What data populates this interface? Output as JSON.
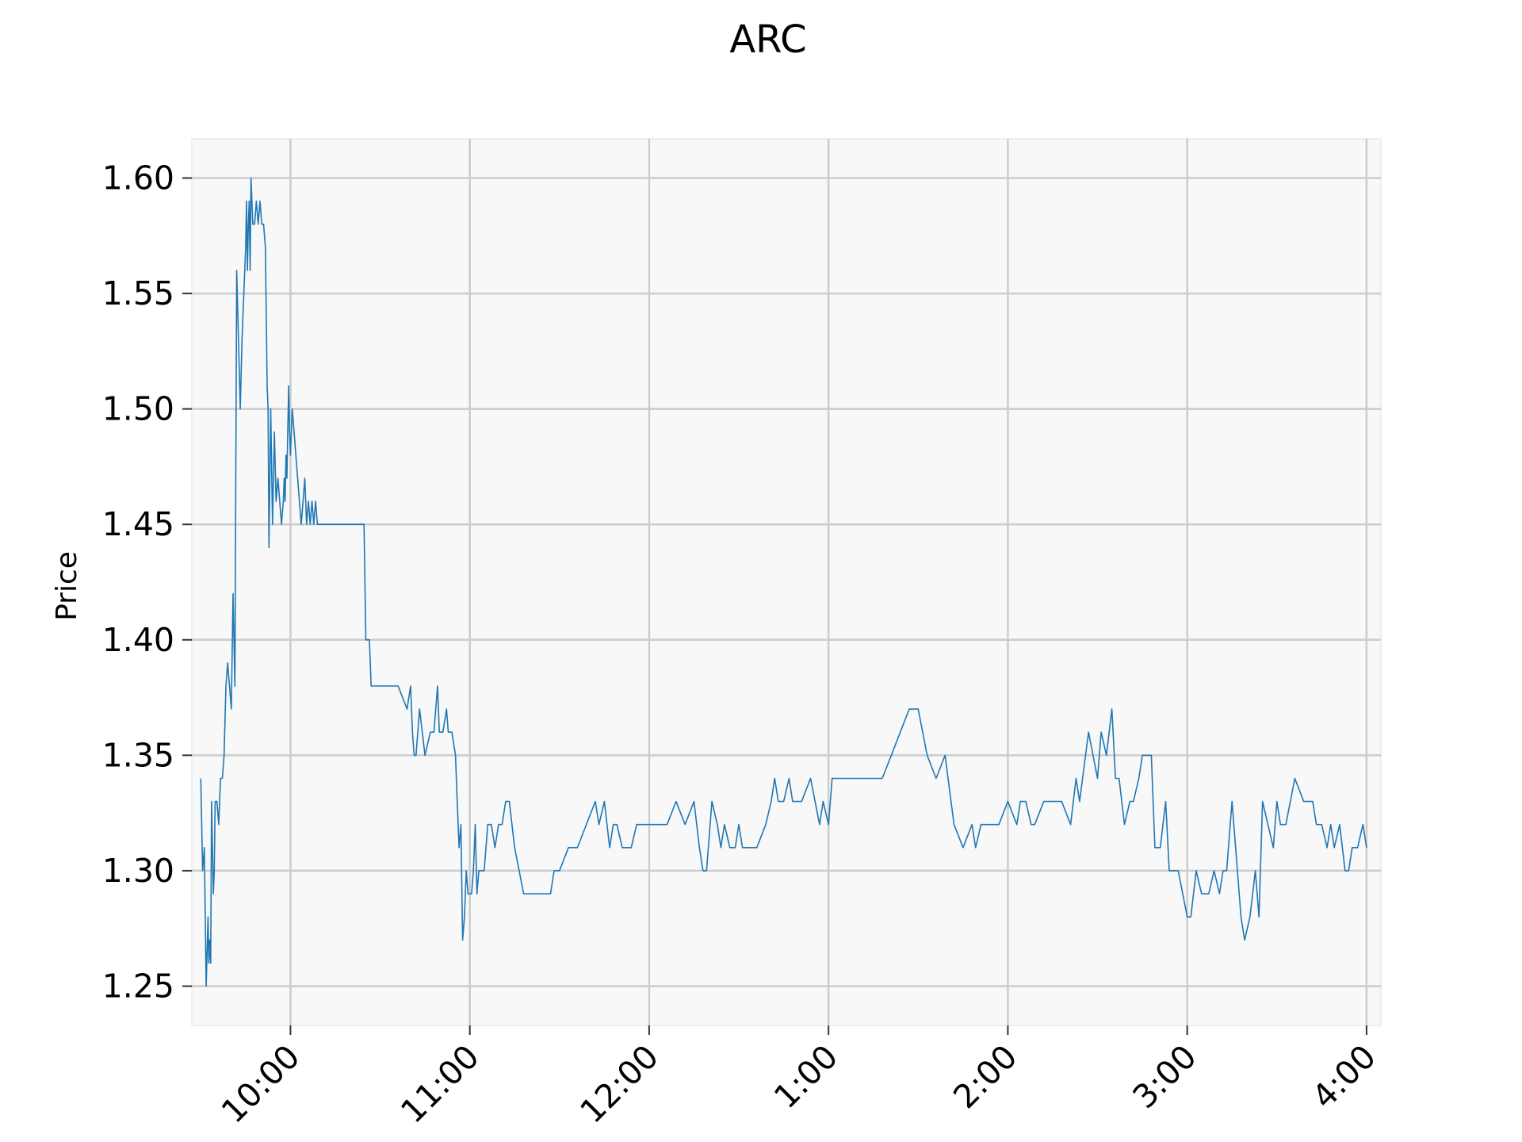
{
  "chart_data": {
    "type": "line",
    "title": "ARC",
    "xlabel": "",
    "ylabel": "Price",
    "xlim": [
      9.45,
      16.08
    ],
    "ylim": [
      1.233,
      1.617
    ],
    "grid": true,
    "x_ticks": [
      {
        "value": 10,
        "label": "10:00"
      },
      {
        "value": 11,
        "label": "11:00"
      },
      {
        "value": 12,
        "label": "12:00"
      },
      {
        "value": 13,
        "label": "1:00"
      },
      {
        "value": 14,
        "label": "2:00"
      },
      {
        "value": 15,
        "label": "3:00"
      },
      {
        "value": 16,
        "label": "4:00"
      }
    ],
    "y_ticks": [
      {
        "value": 1.25,
        "label": "1.25"
      },
      {
        "value": 1.3,
        "label": "1.30"
      },
      {
        "value": 1.35,
        "label": "1.35"
      },
      {
        "value": 1.4,
        "label": "1.40"
      },
      {
        "value": 1.45,
        "label": "1.45"
      },
      {
        "value": 1.5,
        "label": "1.50"
      },
      {
        "value": 1.55,
        "label": "1.55"
      },
      {
        "value": 1.6,
        "label": "1.60"
      }
    ],
    "colors": {
      "line": "#1f77b4",
      "plot_bg": "#f8f8f8",
      "grid": "#cccccc"
    },
    "series": [
      {
        "x": [
          9.5,
          9.51,
          9.52,
          9.53,
          9.54,
          9.545,
          9.55,
          9.555,
          9.56,
          9.57,
          9.575,
          9.58,
          9.59,
          9.6,
          9.61,
          9.62,
          9.63,
          9.64,
          9.65,
          9.66,
          9.67,
          9.68,
          9.69,
          9.7,
          9.72,
          9.73,
          9.74,
          9.75,
          9.755,
          9.76,
          9.765,
          9.77,
          9.775,
          9.78,
          9.79,
          9.8,
          9.81,
          9.82,
          9.83,
          9.84,
          9.85,
          9.86,
          9.87,
          9.875,
          9.88,
          9.89,
          9.9,
          9.91,
          9.92,
          9.93,
          9.94,
          9.95,
          9.96,
          9.965,
          9.97,
          9.975,
          9.98,
          9.985,
          9.99,
          9.995,
          10.0,
          10.01,
          10.02,
          10.03,
          10.04,
          10.05,
          10.06,
          10.07,
          10.08,
          10.09,
          10.1,
          10.11,
          10.12,
          10.13,
          10.14,
          10.15,
          10.16,
          10.17,
          10.18,
          10.19,
          10.2,
          10.21,
          10.22,
          10.23,
          10.24,
          10.25,
          10.26,
          10.27,
          10.28,
          10.29,
          10.3,
          10.32,
          10.35,
          10.38,
          10.41,
          10.42,
          10.44,
          10.45,
          10.47,
          10.5,
          10.6,
          10.65,
          10.67,
          10.68,
          10.69,
          10.7,
          10.72,
          10.75,
          10.78,
          10.8,
          10.82,
          10.83,
          10.85,
          10.87,
          10.88,
          10.9,
          10.92,
          10.93,
          10.94,
          10.95,
          10.96,
          10.97,
          10.98,
          10.99,
          11.0,
          11.01,
          11.02,
          11.03,
          11.04,
          11.05,
          11.06,
          11.08,
          11.1,
          11.12,
          11.14,
          11.16,
          11.18,
          11.2,
          11.22,
          11.25,
          11.3,
          11.35,
          11.4,
          11.45,
          11.47,
          11.5,
          11.55,
          11.6,
          11.65,
          11.7,
          11.72,
          11.75,
          11.78,
          11.8,
          11.82,
          11.85,
          11.88,
          11.9,
          11.93,
          11.95,
          11.98,
          12.0,
          12.05,
          12.1,
          12.15,
          12.2,
          12.25,
          12.28,
          12.3,
          12.32,
          12.35,
          12.38,
          12.4,
          12.42,
          12.45,
          12.48,
          12.5,
          12.52,
          12.55,
          12.6,
          12.65,
          12.68,
          12.7,
          12.72,
          12.75,
          12.78,
          12.8,
          12.82,
          12.85,
          12.9,
          12.95,
          12.97,
          13.0,
          13.02,
          13.05,
          13.1,
          13.15,
          13.2,
          13.25,
          13.3,
          13.35,
          13.4,
          13.45,
          13.5,
          13.55,
          13.6,
          13.65,
          13.7,
          13.75,
          13.8,
          13.82,
          13.85,
          13.9,
          13.95,
          14.0,
          14.05,
          14.07,
          14.1,
          14.13,
          14.15,
          14.2,
          14.25,
          14.3,
          14.35,
          14.38,
          14.4,
          14.45,
          14.5,
          14.52,
          14.55,
          14.58,
          14.6,
          14.62,
          14.65,
          14.68,
          14.7,
          14.73,
          14.75,
          14.8,
          14.82,
          14.85,
          14.88,
          14.9,
          14.92,
          14.95,
          15.0,
          15.02,
          15.05,
          15.08,
          15.1,
          15.12,
          15.15,
          15.18,
          15.2,
          15.22,
          15.25,
          15.28,
          15.3,
          15.32,
          15.35,
          15.38,
          15.4,
          15.42,
          15.45,
          15.48,
          15.5,
          15.52,
          15.55,
          15.6,
          15.65,
          15.7,
          15.72,
          15.75,
          15.78,
          15.8,
          15.82,
          15.85,
          15.88,
          15.9,
          15.92,
          15.95,
          15.98,
          16.0
        ],
        "values": [
          1.34,
          1.3,
          1.31,
          1.25,
          1.28,
          1.26,
          1.27,
          1.26,
          1.33,
          1.29,
          1.3,
          1.33,
          1.33,
          1.32,
          1.34,
          1.34,
          1.35,
          1.38,
          1.39,
          1.38,
          1.37,
          1.42,
          1.38,
          1.56,
          1.5,
          1.53,
          1.55,
          1.57,
          1.59,
          1.56,
          1.58,
          1.59,
          1.56,
          1.6,
          1.58,
          1.58,
          1.59,
          1.58,
          1.59,
          1.58,
          1.58,
          1.57,
          1.51,
          1.5,
          1.44,
          1.5,
          1.45,
          1.49,
          1.46,
          1.47,
          1.46,
          1.45,
          1.46,
          1.47,
          1.46,
          1.48,
          1.47,
          1.49,
          1.51,
          1.49,
          1.48,
          1.5,
          1.49,
          1.48,
          1.47,
          1.46,
          1.45,
          1.46,
          1.47,
          1.45,
          1.46,
          1.45,
          1.46,
          1.45,
          1.46,
          1.45,
          1.45,
          1.45,
          1.45,
          1.45,
          1.45,
          1.45,
          1.45,
          1.45,
          1.45,
          1.45,
          1.45,
          1.45,
          1.45,
          1.45,
          1.45,
          1.45,
          1.45,
          1.45,
          1.45,
          1.4,
          1.4,
          1.38,
          1.38,
          1.38,
          1.38,
          1.37,
          1.38,
          1.36,
          1.35,
          1.35,
          1.37,
          1.35,
          1.36,
          1.36,
          1.38,
          1.36,
          1.36,
          1.37,
          1.36,
          1.36,
          1.35,
          1.33,
          1.31,
          1.32,
          1.27,
          1.28,
          1.3,
          1.29,
          1.29,
          1.29,
          1.3,
          1.32,
          1.29,
          1.3,
          1.3,
          1.3,
          1.32,
          1.32,
          1.31,
          1.32,
          1.32,
          1.33,
          1.33,
          1.31,
          1.29,
          1.29,
          1.29,
          1.29,
          1.3,
          1.3,
          1.31,
          1.31,
          1.32,
          1.33,
          1.32,
          1.33,
          1.31,
          1.32,
          1.32,
          1.31,
          1.31,
          1.31,
          1.32,
          1.32,
          1.32,
          1.32,
          1.32,
          1.32,
          1.33,
          1.32,
          1.33,
          1.31,
          1.3,
          1.3,
          1.33,
          1.32,
          1.31,
          1.32,
          1.31,
          1.31,
          1.32,
          1.31,
          1.31,
          1.31,
          1.32,
          1.33,
          1.34,
          1.33,
          1.33,
          1.34,
          1.33,
          1.33,
          1.33,
          1.34,
          1.32,
          1.33,
          1.32,
          1.34,
          1.34,
          1.34,
          1.34,
          1.34,
          1.34,
          1.34,
          1.35,
          1.36,
          1.37,
          1.37,
          1.35,
          1.34,
          1.35,
          1.32,
          1.31,
          1.32,
          1.31,
          1.32,
          1.32,
          1.32,
          1.33,
          1.32,
          1.33,
          1.33,
          1.32,
          1.32,
          1.33,
          1.33,
          1.33,
          1.32,
          1.34,
          1.33,
          1.36,
          1.34,
          1.36,
          1.35,
          1.37,
          1.34,
          1.34,
          1.32,
          1.33,
          1.33,
          1.34,
          1.35,
          1.35,
          1.31,
          1.31,
          1.33,
          1.3,
          1.3,
          1.3,
          1.28,
          1.28,
          1.3,
          1.29,
          1.29,
          1.29,
          1.3,
          1.29,
          1.3,
          1.3,
          1.33,
          1.3,
          1.28,
          1.27,
          1.28,
          1.3,
          1.28,
          1.33,
          1.32,
          1.31,
          1.33,
          1.32,
          1.32,
          1.34,
          1.33,
          1.33,
          1.32,
          1.32,
          1.31,
          1.32,
          1.31,
          1.32,
          1.3,
          1.3,
          1.31,
          1.31,
          1.32,
          1.31
        ]
      }
    ]
  }
}
